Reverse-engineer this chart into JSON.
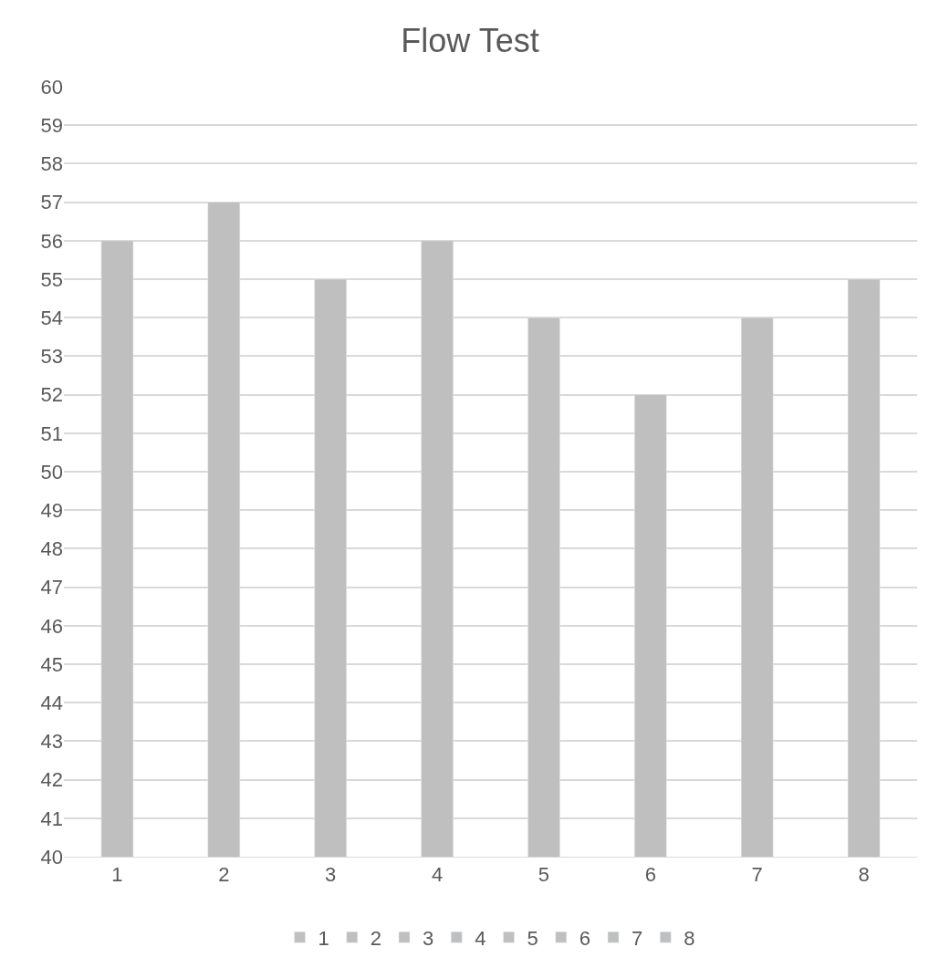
{
  "chart_data": {
    "type": "bar",
    "title": "Flow Test",
    "categories": [
      "1",
      "2",
      "3",
      "4",
      "5",
      "6",
      "7",
      "8"
    ],
    "series": [
      {
        "name": "1",
        "color": "#bfbfbf",
        "values": [
          56,
          null,
          null,
          null,
          null,
          null,
          null,
          null
        ]
      },
      {
        "name": "2",
        "color": "#bfbfbf",
        "values": [
          null,
          57,
          null,
          null,
          null,
          null,
          null,
          null
        ]
      },
      {
        "name": "3",
        "color": "#bfbfbf",
        "values": [
          null,
          null,
          55,
          null,
          null,
          null,
          null,
          null
        ]
      },
      {
        "name": "4",
        "color": "#bfbfbf",
        "values": [
          null,
          null,
          null,
          56,
          null,
          null,
          null,
          null
        ]
      },
      {
        "name": "5",
        "color": "#bfbfbf",
        "values": [
          null,
          null,
          null,
          null,
          54,
          null,
          null,
          null
        ]
      },
      {
        "name": "6",
        "color": "#bfbfbf",
        "values": [
          null,
          null,
          null,
          null,
          null,
          52,
          null,
          null
        ]
      },
      {
        "name": "7",
        "color": "#bfbfbf",
        "values": [
          null,
          null,
          null,
          null,
          null,
          null,
          54,
          null
        ]
      },
      {
        "name": "8",
        "color": "#bfbfbf",
        "values": [
          null,
          null,
          null,
          null,
          null,
          null,
          null,
          55
        ]
      }
    ],
    "ylim": [
      40,
      60
    ],
    "yticks": [
      40,
      41,
      42,
      43,
      44,
      45,
      46,
      47,
      48,
      49,
      50,
      51,
      52,
      53,
      54,
      55,
      56,
      57,
      58,
      59,
      60
    ],
    "grid": "y",
    "legend": "bottom"
  }
}
